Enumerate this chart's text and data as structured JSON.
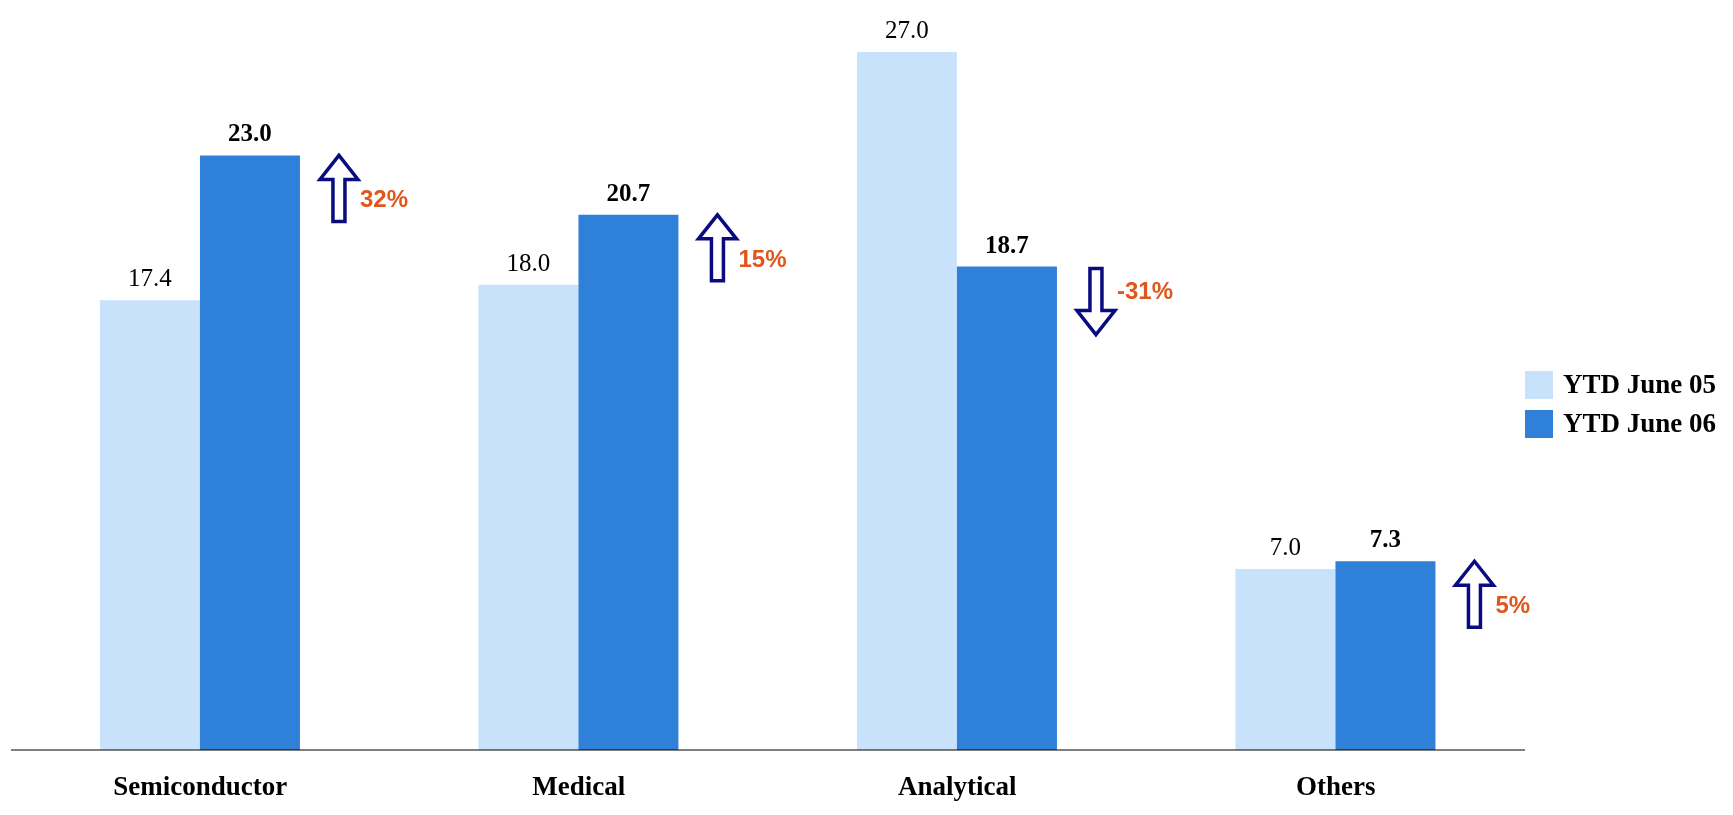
{
  "chart_data": {
    "type": "bar",
    "categories": [
      "Semiconductor",
      "Medical",
      "Analytical",
      "Others"
    ],
    "series": [
      {
        "name": "YTD June 05",
        "color": "#c8e2fb",
        "values": [
          17.4,
          18.0,
          27.0,
          7.0
        ],
        "value_labels": [
          "17.4",
          "18.0",
          "27.0",
          "7.0"
        ]
      },
      {
        "name": "YTD June 06",
        "color": "#2f80d8",
        "values": [
          23.0,
          20.7,
          18.7,
          7.3
        ],
        "value_labels": [
          "23.0",
          "20.7",
          "18.7",
          "7.3"
        ]
      }
    ],
    "legend": "right",
    "grid": false,
    "annotations": [
      "32%",
      "15%",
      "-31%",
      "5%"
    ]
  }
}
